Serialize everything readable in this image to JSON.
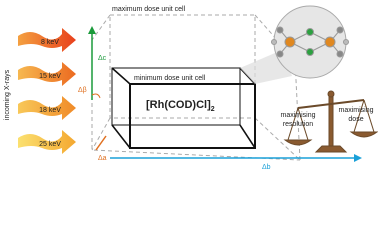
{
  "energies": [
    "8 keV",
    "15 keV",
    "18 keV",
    "25 keV"
  ],
  "side_label": "incoming X-rays",
  "cells": {
    "maximum": "maximum dose unit cell",
    "minimum": "minimum dose unit cell"
  },
  "compound": {
    "formula": "[Rh(COD)Cl]",
    "subscript": "2"
  },
  "deltas": {
    "c": "Δc",
    "beta": "Δβ",
    "a": "Δa",
    "b": "Δb"
  },
  "balance": {
    "left": [
      "maximising",
      "resolution"
    ],
    "right": [
      "maximising",
      "dose"
    ]
  }
}
